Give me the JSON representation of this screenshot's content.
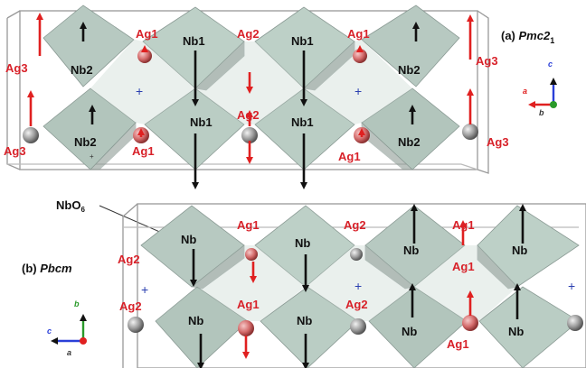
{
  "panel_a": {
    "title_prefix": "(a) ",
    "title_italic": "Pmc2",
    "title_sub": "1",
    "labels": {
      "nb2_top_left": "Nb2",
      "nb1_top_a": "Nb1",
      "nb1_top_b": "Nb1",
      "nb2_top_right": "Nb2",
      "nb2_bot_left": "Nb2",
      "nb1_bot_a": "Nb1",
      "nb1_bot_b": "Nb1",
      "nb2_bot_right": "Nb2",
      "ag1_top_left": "Ag1",
      "ag2_top": "Ag2",
      "ag1_top_right": "Ag1",
      "ag1_bot_left": "Ag1",
      "ag2_bot": "Ag2",
      "ag1_bot_right": "Ag1",
      "ag3_left_top": "Ag3",
      "ag3_left_bot": "Ag3",
      "ag3_right_top": "Ag3",
      "ag3_right_bot": "Ag3"
    },
    "axes": {
      "c": "c",
      "a": "a",
      "b": "b"
    }
  },
  "nbo6_label": "NbO",
  "nbo6_sub": "6",
  "panel_b": {
    "title_prefix": "(b) ",
    "title_italic": "Pbcm",
    "labels": {
      "nb_top_1": "Nb",
      "nb_top_2": "Nb",
      "nb_top_3": "Nb",
      "nb_top_4": "Nb",
      "nb_bot_1": "Nb",
      "nb_bot_2": "Nb",
      "nb_bot_3": "Nb",
      "nb_bot_4": "Nb",
      "ag1_top_a": "Ag1",
      "ag2_top": "Ag2",
      "ag1_top_b": "Ag1",
      "ag1_mid_a": "Ag1",
      "ag2_mid": "Ag2",
      "ag1_mid_b": "Ag1",
      "ag2_left_top": "Ag2",
      "ag2_left_bot": "Ag2",
      "ag1_bottom": "Ag1"
    },
    "axes": {
      "b": "b",
      "c": "c",
      "a": "a"
    }
  }
}
